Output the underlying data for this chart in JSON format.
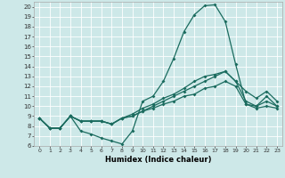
{
  "title": "",
  "xlabel": "Humidex (Indice chaleur)",
  "bg_color": "#cde8e8",
  "grid_color": "#ffffff",
  "line_color": "#1a6b5e",
  "xlim": [
    -0.5,
    23.5
  ],
  "ylim": [
    6,
    20.5
  ],
  "xticks": [
    0,
    1,
    2,
    3,
    4,
    5,
    6,
    7,
    8,
    9,
    10,
    11,
    12,
    13,
    14,
    15,
    16,
    17,
    18,
    19,
    20,
    21,
    22,
    23
  ],
  "yticks": [
    6,
    7,
    8,
    9,
    10,
    11,
    12,
    13,
    14,
    15,
    16,
    17,
    18,
    19,
    20
  ],
  "line1_x": [
    0,
    1,
    2,
    3,
    4,
    5,
    6,
    7,
    8,
    9,
    10,
    11,
    12,
    13,
    14,
    15,
    16,
    17,
    18,
    19,
    20,
    21,
    22,
    23
  ],
  "line1_y": [
    8.8,
    7.8,
    7.8,
    9.0,
    7.5,
    7.2,
    6.8,
    6.5,
    6.2,
    7.5,
    10.5,
    11.0,
    12.5,
    14.8,
    17.5,
    19.2,
    20.1,
    20.2,
    18.5,
    14.2,
    10.2,
    10.0,
    11.0,
    10.0
  ],
  "line2_x": [
    0,
    1,
    2,
    3,
    4,
    5,
    6,
    7,
    8,
    9,
    10,
    11,
    12,
    13,
    14,
    15,
    16,
    17,
    18,
    19,
    20,
    21,
    22,
    23
  ],
  "line2_y": [
    8.8,
    7.8,
    7.8,
    9.0,
    8.5,
    8.5,
    8.5,
    8.2,
    8.8,
    9.2,
    9.8,
    10.2,
    10.8,
    11.2,
    11.8,
    12.5,
    13.0,
    13.2,
    13.5,
    12.5,
    11.5,
    10.8,
    11.5,
    10.5
  ],
  "line3_x": [
    0,
    1,
    2,
    3,
    4,
    5,
    6,
    7,
    8,
    9,
    10,
    11,
    12,
    13,
    14,
    15,
    16,
    17,
    18,
    19,
    20,
    21,
    22,
    23
  ],
  "line3_y": [
    8.8,
    7.8,
    7.8,
    9.0,
    8.5,
    8.5,
    8.5,
    8.2,
    8.8,
    9.0,
    9.5,
    10.0,
    10.5,
    11.0,
    11.5,
    12.0,
    12.5,
    13.0,
    13.5,
    12.5,
    10.5,
    10.0,
    10.5,
    10.0
  ],
  "line4_x": [
    0,
    1,
    2,
    3,
    4,
    5,
    6,
    7,
    8,
    9,
    10,
    11,
    12,
    13,
    14,
    15,
    16,
    17,
    18,
    19,
    20,
    21,
    22,
    23
  ],
  "line4_y": [
    8.8,
    7.8,
    7.8,
    9.0,
    8.5,
    8.5,
    8.5,
    8.2,
    8.8,
    9.0,
    9.5,
    9.8,
    10.2,
    10.5,
    11.0,
    11.2,
    11.8,
    12.0,
    12.5,
    12.0,
    10.2,
    9.8,
    10.0,
    9.8
  ]
}
